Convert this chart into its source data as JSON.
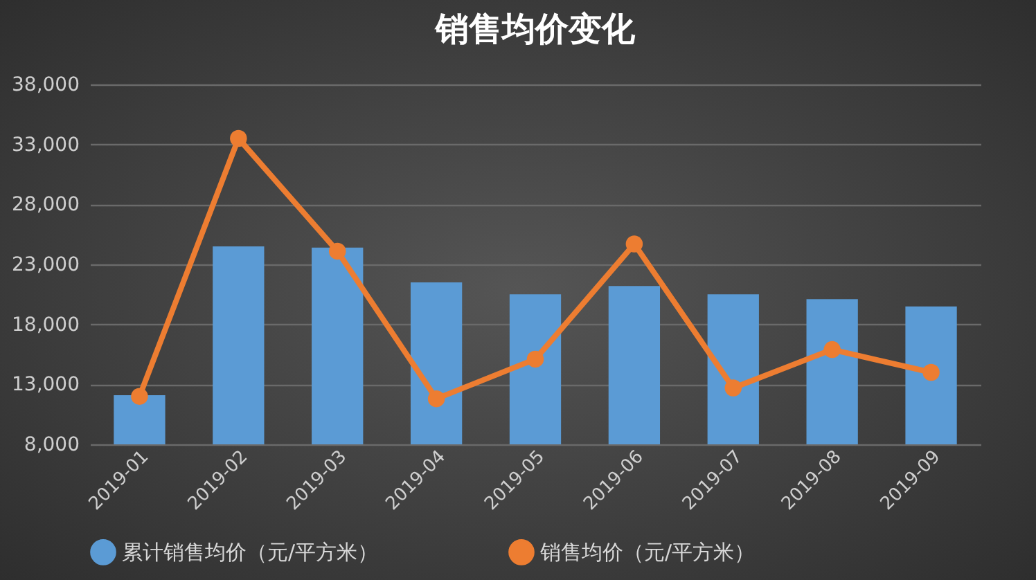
{
  "chart_data": {
    "type": "bar",
    "title": "销售均价变化",
    "categories": [
      "2019-01",
      "2019-02",
      "2019-03",
      "2019-04",
      "2019-05",
      "2019-06",
      "2019-07",
      "2019-08",
      "2019-09"
    ],
    "series": [
      {
        "name": "累计销售均价（元/平方米）",
        "type": "bar",
        "color": "#5b9bd5",
        "values": [
          12100,
          24500,
          24400,
          21500,
          20500,
          21200,
          20500,
          20100,
          19500
        ]
      },
      {
        "name": "销售均价（元/平方米）",
        "type": "line",
        "color": "#ed7d31",
        "values": [
          12000,
          33500,
          24100,
          11800,
          15100,
          24700,
          12700,
          15900,
          14000
        ]
      }
    ],
    "ylim": [
      8000,
      38000
    ],
    "yticks": [
      {
        "value": 8000,
        "label": "8,000"
      },
      {
        "value": 13000,
        "label": "13,000"
      },
      {
        "value": 18000,
        "label": "18,000"
      },
      {
        "value": 23000,
        "label": "23,000"
      },
      {
        "value": 28000,
        "label": "28,000"
      },
      {
        "value": 33000,
        "label": "33,000"
      },
      {
        "value": 38000,
        "label": "38,000"
      }
    ],
    "grid": "y",
    "legend": "bottom",
    "marker": "circle",
    "line_style": "solid"
  }
}
